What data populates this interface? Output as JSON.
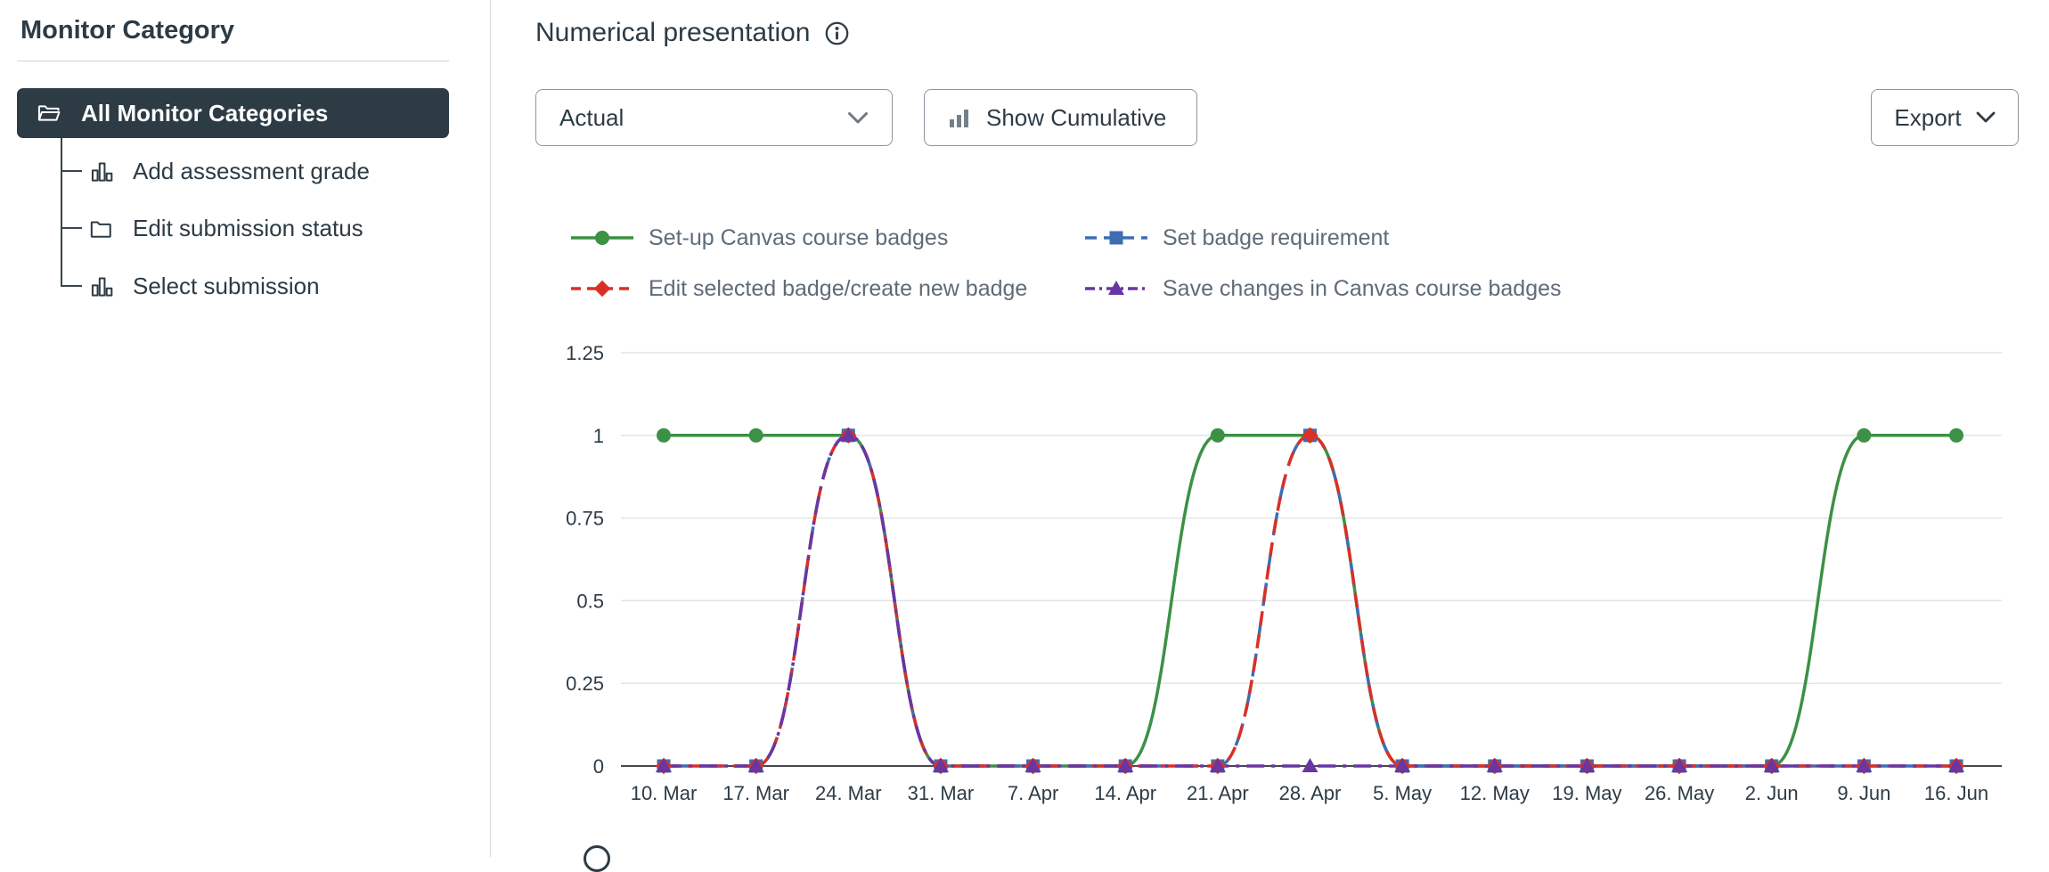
{
  "sidebar": {
    "title": "Monitor Category",
    "selected_item": {
      "label": "All Monitor Categories",
      "icon": "folder-open-icon"
    },
    "items": [
      {
        "label": "Add assessment grade",
        "icon": "bar-chart-icon"
      },
      {
        "label": "Edit submission status",
        "icon": "folder-icon"
      },
      {
        "label": "Select submission",
        "icon": "bar-chart-icon"
      }
    ]
  },
  "main": {
    "title": "Numerical presentation",
    "info_icon": "info-icon",
    "toolbar": {
      "mode_select_value": "Actual",
      "cumulative_label": "Show Cumulative",
      "cumulative_icon": "bar-chart-icon",
      "export_label": "Export"
    }
  },
  "colors": {
    "ink": "#2D3B45",
    "legend_text": "#5f6b78",
    "grid_line": "#e2e4e6",
    "axis_line": "#45484d",
    "selected_bg": "#2D3B45"
  },
  "chart_data": {
    "type": "line",
    "title": "Numerical presentation",
    "xlabel": "",
    "ylabel": "",
    "ylim": [
      0,
      1.25
    ],
    "yticks": [
      0,
      0.25,
      0.5,
      0.75,
      1,
      1.25
    ],
    "grid": true,
    "legend_position": "top",
    "categories": [
      "10. Mar",
      "17. Mar",
      "24. Mar",
      "31. Mar",
      "7. Apr",
      "14. Apr",
      "21. Apr",
      "28. Apr",
      "5. May",
      "12. May",
      "19. May",
      "26. May",
      "2. Jun",
      "9. Jun",
      "16. Jun"
    ],
    "series": [
      {
        "name": "Set-up Canvas course badges",
        "color": "#3c9144",
        "dash": "solid",
        "marker": "circle",
        "values": [
          1,
          1,
          1,
          0,
          0,
          0,
          1,
          1,
          0,
          0,
          0,
          0,
          0,
          1,
          1
        ]
      },
      {
        "name": "Set badge requirement",
        "color": "#3d6eb4",
        "dash": "longdash",
        "marker": "square",
        "values": [
          0,
          0,
          1,
          0,
          0,
          0,
          0,
          1,
          0,
          0,
          0,
          0,
          0,
          0,
          0
        ]
      },
      {
        "name": "Edit selected badge/create new badge",
        "color": "#d93025",
        "dash": "dashed",
        "marker": "diamond",
        "values": [
          0,
          0,
          1,
          0,
          0,
          0,
          0,
          1,
          0,
          0,
          0,
          0,
          0,
          0,
          0
        ]
      },
      {
        "name": "Save changes in Canvas course badges",
        "color": "#6936a3",
        "dash": "dashdot",
        "marker": "triangle",
        "values": [
          0,
          0,
          1,
          0,
          0,
          0,
          0,
          0,
          0,
          0,
          0,
          0,
          0,
          0,
          0
        ]
      }
    ]
  }
}
